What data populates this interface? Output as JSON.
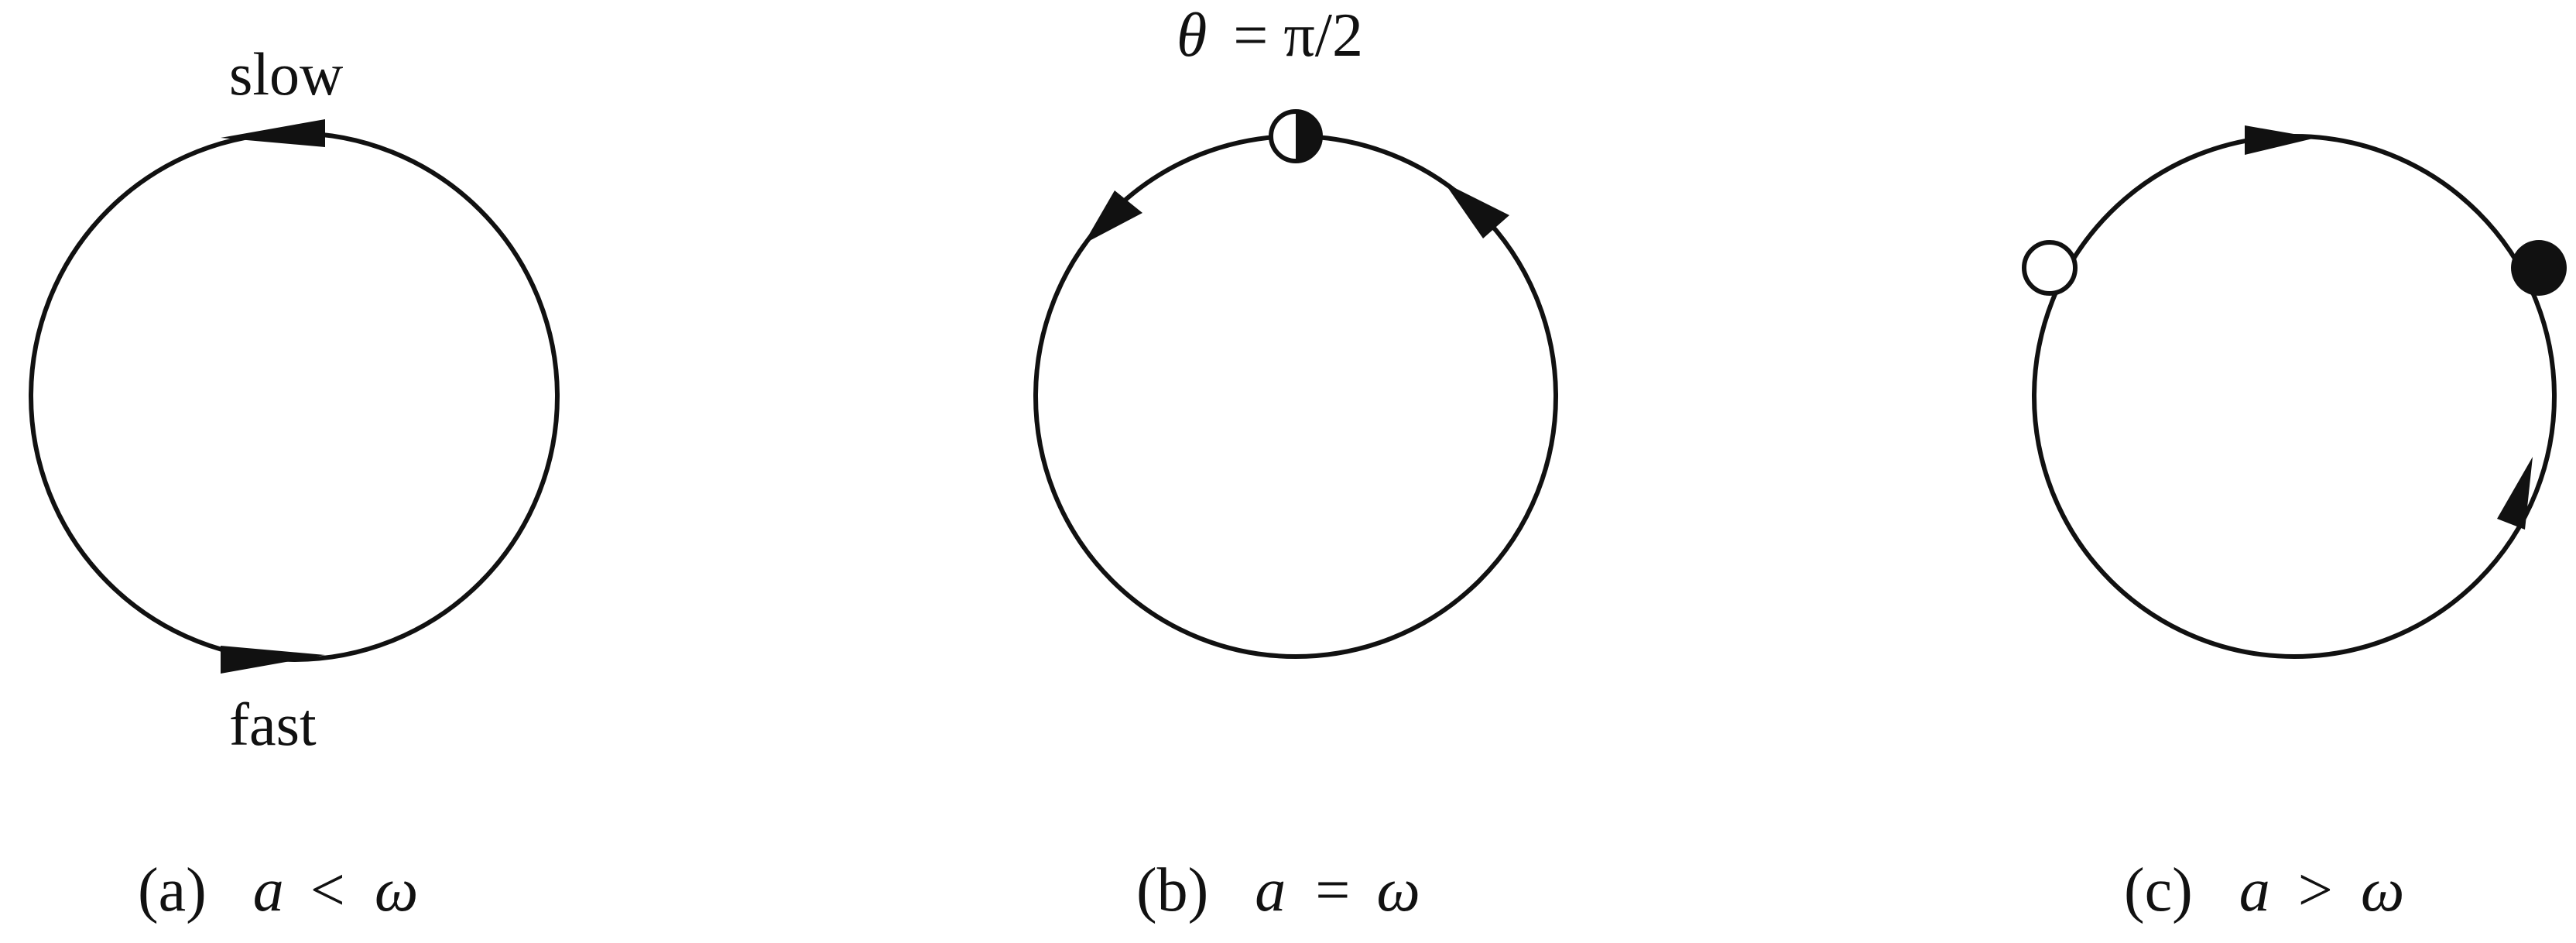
{
  "panels": [
    {
      "id": "a",
      "caption_prefix": "(a)",
      "caption_var": "a",
      "caption_rel": "<",
      "caption_rhs": "ω",
      "top_label": "slow",
      "bottom_label": "fast"
    },
    {
      "id": "b",
      "caption_prefix": "(b)",
      "caption_var": "a",
      "caption_rel": "=",
      "caption_rhs": "ω",
      "annotation_var": "θ",
      "annotation_rest": "= π/2",
      "fixed_points": [
        "half-stable"
      ]
    },
    {
      "id": "c",
      "caption_prefix": "(c)",
      "caption_var": "a",
      "caption_rel": ">",
      "caption_rhs": "ω",
      "fixed_points": [
        "unstable",
        "stable"
      ]
    }
  ],
  "colors": {
    "ink": "#111111",
    "background": "#ffffff"
  }
}
